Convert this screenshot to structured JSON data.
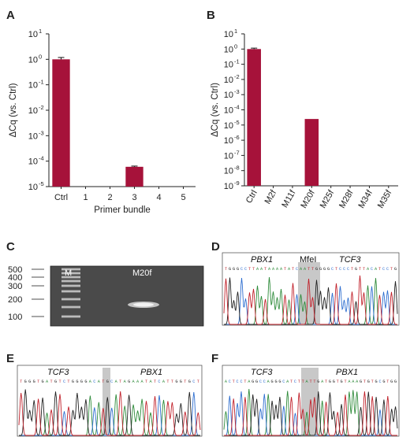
{
  "chart_data": [
    {
      "type": "bar",
      "panel": "A",
      "title": "",
      "categories": [
        "Ctrl",
        "1",
        "2",
        "3",
        "4",
        "5"
      ],
      "values": [
        1.0,
        null,
        null,
        6e-05,
        null,
        null
      ],
      "errors": [
        0.18,
        null,
        null,
        4e-06,
        null,
        null
      ],
      "xlabel": "Primer bundle",
      "ylabel": "ΔCq (vs. Ctrl)",
      "yscale": "log",
      "ylim": [
        1e-05,
        10
      ],
      "yticks": [
        {
          "base": "10",
          "exp": "1"
        },
        {
          "base": "10",
          "exp": "0"
        },
        {
          "base": "10",
          "exp": "-1"
        },
        {
          "base": "10",
          "exp": "-2"
        },
        {
          "base": "10",
          "exp": "-3"
        },
        {
          "base": "10",
          "exp": "-4"
        },
        {
          "base": "10",
          "exp": "-5"
        }
      ],
      "bar_color": "#a6123a",
      "grid": false
    },
    {
      "type": "bar",
      "panel": "B",
      "title": "",
      "categories": [
        "Ctrl",
        "M2f",
        "M11f",
        "M20f",
        "M25f",
        "M28f",
        "M34f",
        "M35f"
      ],
      "values": [
        1.0,
        null,
        null,
        2.5e-05,
        null,
        null,
        null,
        null
      ],
      "errors": [
        0.15,
        null,
        null,
        null,
        null,
        null,
        null,
        null
      ],
      "xlabel": "",
      "ylabel": "ΔCq (vs. Ctrl)",
      "yscale": "log",
      "ylim": [
        1e-09,
        10
      ],
      "yticks": [
        {
          "base": "10",
          "exp": "1"
        },
        {
          "base": "10",
          "exp": "0"
        },
        {
          "base": "10",
          "exp": "-1"
        },
        {
          "base": "10",
          "exp": "-2"
        },
        {
          "base": "10",
          "exp": "-3"
        },
        {
          "base": "10",
          "exp": "-4"
        },
        {
          "base": "10",
          "exp": "-5"
        },
        {
          "base": "10",
          "exp": "-6"
        },
        {
          "base": "10",
          "exp": "-7"
        },
        {
          "base": "10",
          "exp": "-8"
        },
        {
          "base": "10",
          "exp": "-9"
        }
      ],
      "bar_color": "#a6123a",
      "grid": false
    }
  ],
  "panels": {
    "a": "A",
    "b": "B",
    "c": "C",
    "d": "D",
    "e": "E",
    "f": "F"
  },
  "gel": {
    "lane_labels": [
      "M",
      "M20f"
    ],
    "size_labels": [
      "500",
      "400",
      "300",
      "200",
      "100"
    ]
  },
  "chromatograms": {
    "d": {
      "left_gene": "PBX1",
      "site": "MfeI",
      "right_gene": "TCF3",
      "sequence": "TGGGCCTTAATAAAATATCAATTGGGGCTCCCTGTTACATCCTG"
    },
    "e": {
      "left_gene": "TCF3",
      "site": "",
      "right_gene": "PBX1",
      "sequence": "TGGGTGATGTCTGGGGACATGCATAGAAATATCATTGGTGCT"
    },
    "f": {
      "left_gene": "TCF3",
      "site": "",
      "right_gene": "PBX1",
      "sequence": "ACTCCTAGGCCAGGGCATCTTATTGATGGTGTAAAGTGTGCGTGG"
    }
  },
  "colors": {
    "bar": "#a6123a",
    "trace_a": "#2e8b3a",
    "trace_c": "#2f6fd0",
    "trace_g": "#222222",
    "trace_t": "#c0202a",
    "highlight": "#c8c8c8"
  }
}
